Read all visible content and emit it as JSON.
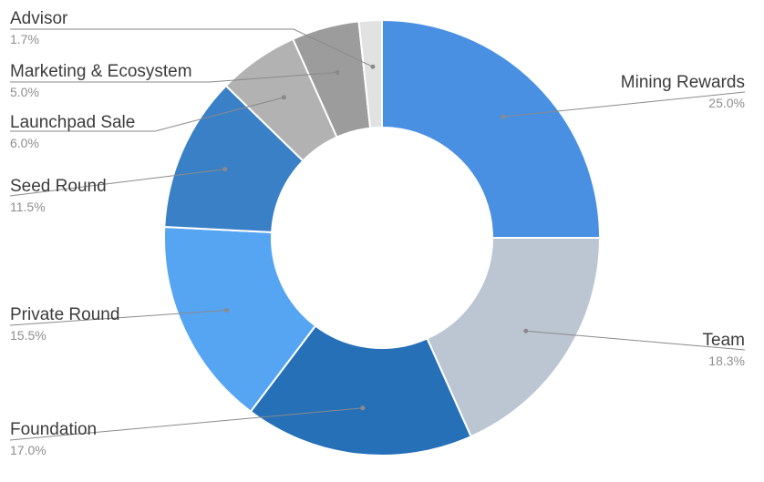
{
  "chart_data": {
    "type": "pie",
    "donut": true,
    "start_angle_deg": 0,
    "direction": "clockwise",
    "title": "",
    "legend": "none",
    "slices": [
      {
        "label": "Mining Rewards",
        "value": 25.0,
        "percent_label": "25.0%",
        "color": "#4a90e2",
        "label_side": "right"
      },
      {
        "label": "Team",
        "value": 18.3,
        "percent_label": "18.3%",
        "color": "#bcc6d3",
        "label_side": "right"
      },
      {
        "label": "Foundation",
        "value": 17.0,
        "percent_label": "17.0%",
        "color": "#2670b8",
        "label_side": "left"
      },
      {
        "label": "Private Round",
        "value": 15.5,
        "percent_label": "15.5%",
        "color": "#56a5f2",
        "label_side": "left"
      },
      {
        "label": "Seed Round",
        "value": 11.5,
        "percent_label": "11.5%",
        "color": "#3a80c6",
        "label_side": "left"
      },
      {
        "label": "Launchpad Sale",
        "value": 6.0,
        "percent_label": "6.0%",
        "color": "#b2b2b2",
        "label_side": "left"
      },
      {
        "label": "Marketing & Ecosystem",
        "value": 5.0,
        "percent_label": "5.0%",
        "color": "#9c9c9c",
        "label_side": "left"
      },
      {
        "label": "Advisor",
        "value": 1.7,
        "percent_label": "1.7%",
        "color": "#e2e2e2",
        "label_side": "left"
      }
    ]
  }
}
